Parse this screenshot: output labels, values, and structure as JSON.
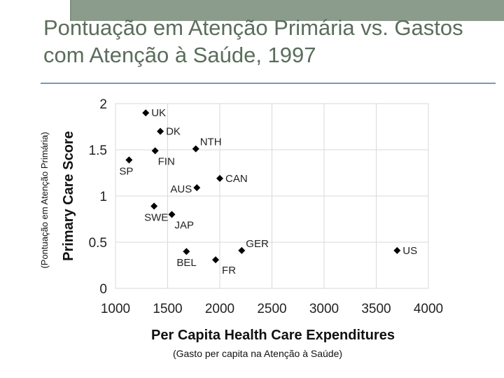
{
  "slide": {
    "title_line1": "Pontuação em Atenção Primária vs. Gastos",
    "title_line2": "com Atenção à Saúde, 1997",
    "side_caption": "(Pontuação em Atenção Primária)",
    "bottom_caption": "(Gasto per capita na Atenção à Saúde)"
  },
  "colors": {
    "title": "#5a6d5b",
    "top_bar": "#8c9c8c",
    "divider": "#7a97c4",
    "marker": "#000000",
    "grid": "#d9d9d9"
  },
  "chart_data": {
    "type": "scatter",
    "title": "",
    "xlabel": "Per Capita Health Care Expenditures",
    "ylabel": "Primary Care Score",
    "xlim": [
      1000,
      4000
    ],
    "ylim": [
      0,
      2
    ],
    "x_ticks": [
      1000,
      1500,
      2000,
      2500,
      3000,
      3500,
      4000
    ],
    "y_ticks": [
      0,
      0.5,
      1,
      1.5,
      2
    ],
    "y_tick_labels": [
      "0",
      "0.5",
      "1",
      "1.5",
      "2"
    ],
    "grid": true,
    "marker": "diamond",
    "points": [
      {
        "label": "UK",
        "x": 1290,
        "y": 1.9,
        "label_pos": "right"
      },
      {
        "label": "DK",
        "x": 1430,
        "y": 1.7,
        "label_pos": "right"
      },
      {
        "label": "NTH",
        "x": 1770,
        "y": 1.51,
        "label_pos": "upper-right"
      },
      {
        "label": "FIN",
        "x": 1380,
        "y": 1.49,
        "label_pos": "lower-right"
      },
      {
        "label": "SP",
        "x": 1130,
        "y": 1.39,
        "label_pos": "lower-left"
      },
      {
        "label": "CAN",
        "x": 2000,
        "y": 1.19,
        "label_pos": "right"
      },
      {
        "label": "AUS",
        "x": 1780,
        "y": 1.09,
        "label_pos": "left"
      },
      {
        "label": "SWE",
        "x": 1370,
        "y": 0.89,
        "label_pos": "lower-left"
      },
      {
        "label": "JAP",
        "x": 1540,
        "y": 0.8,
        "label_pos": "lower-right"
      },
      {
        "label": "GER",
        "x": 2210,
        "y": 0.41,
        "label_pos": "upper-right"
      },
      {
        "label": "BEL",
        "x": 1680,
        "y": 0.4,
        "label_pos": "below"
      },
      {
        "label": "FR",
        "x": 1960,
        "y": 0.31,
        "label_pos": "right-below"
      },
      {
        "label": "US",
        "x": 3700,
        "y": 0.41,
        "label_pos": "right"
      }
    ]
  }
}
